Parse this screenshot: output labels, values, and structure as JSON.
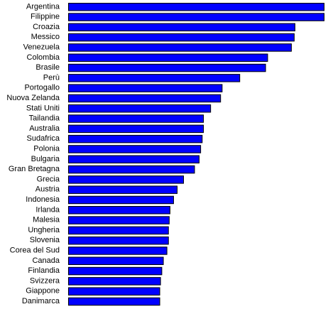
{
  "chart_data": {
    "type": "bar",
    "orientation": "horizontal",
    "title": "",
    "xlabel": "",
    "ylabel": "",
    "grid": false,
    "legend": "none",
    "bar_color": "#0000ff",
    "xlim": [
      0,
      100
    ],
    "categories": [
      "Argentina",
      "Filippine",
      "Croazia",
      "Messico",
      "Venezuela",
      "Colombia",
      "Brasile",
      "Perù",
      "Portogallo",
      "Nuova Zelanda",
      "Stati Uniti",
      "Tailandia",
      "Australia",
      "Sudafrica",
      "Polonia",
      "Bulgaria",
      "Gran Bretagna",
      "Grecia",
      "Austria",
      "Indonesia",
      "Irlanda",
      "Malesia",
      "Ungheria",
      "Slovenia",
      "Corea del Sud",
      "Canada",
      "Finlandia",
      "Svizzera",
      "Giappone",
      "Danimarca"
    ],
    "values": [
      100,
      100,
      88.6,
      88.3,
      87.2,
      77.9,
      77.1,
      67.0,
      60.1,
      59.5,
      55.6,
      52.8,
      52.8,
      52.3,
      51.7,
      51.1,
      49.3,
      45.0,
      42.5,
      41.1,
      39.7,
      39.4,
      39.1,
      39.1,
      38.5,
      37.1,
      36.5,
      36.0,
      35.7,
      35.7
    ]
  }
}
